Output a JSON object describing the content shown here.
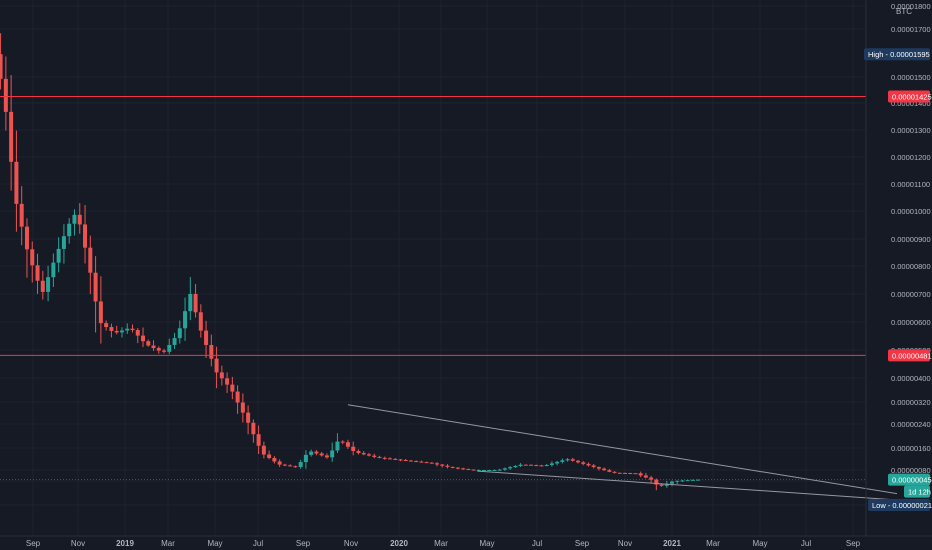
{
  "colors": {
    "background": "#161a25",
    "grid": "#1f2330",
    "up": "#26a69a",
    "down": "#ef5350",
    "resistance": "#f23645",
    "trendline": "#9598a1",
    "axis_text": "#b2b5be",
    "badge_dark": "#1e3a5f",
    "badge_current": "#26a69a",
    "badge_level": "#f23645"
  },
  "chart_data": {
    "type": "candlestick",
    "currency_label": "BTC",
    "time_ticks": [
      "Sep",
      "Nov",
      "2019",
      "Mar",
      "May",
      "Jul",
      "Sep",
      "Nov",
      "2020",
      "Mar",
      "May",
      "Jul",
      "Sep",
      "Nov",
      "2021",
      "Mar",
      "May",
      "Jul",
      "Sep"
    ],
    "price_ticks": [
      "0.00001800",
      "0.00001700",
      "0.00001500",
      "0.00001400",
      "0.00001300",
      "0.00001200",
      "0.00001100",
      "0.00001000",
      "0.00000900",
      "0.00000800",
      "0.00000700",
      "0.00000600",
      "0.00000500",
      "0.00000400",
      "0.00000320",
      "0.00000240",
      "0.00000160",
      "0.00000080",
      "0.00000040",
      "0.00000021"
    ],
    "ylim": [
      2.1e-07,
      1.8e-05
    ],
    "grid": true,
    "levels": [
      {
        "label": "0.00001425",
        "value": 1.425e-05
      },
      {
        "label": "0.00000481",
        "value": 4.81e-06
      }
    ],
    "high": {
      "label": "High",
      "value": "0.00001595"
    },
    "low": {
      "label": "Low",
      "value": "0.00000021"
    },
    "current": {
      "value": "0.00000045",
      "countdown": "1d 12h"
    },
    "trendlines": [
      {
        "from": [
          "2019-10-25",
          3.1e-06
        ],
        "to": [
          "2021-10-30",
          3e-07
        ]
      },
      {
        "from": [
          "2020-04-15",
          7.6e-07
        ],
        "to": [
          "2021-10-30",
          2.5e-07
        ]
      }
    ]
  }
}
